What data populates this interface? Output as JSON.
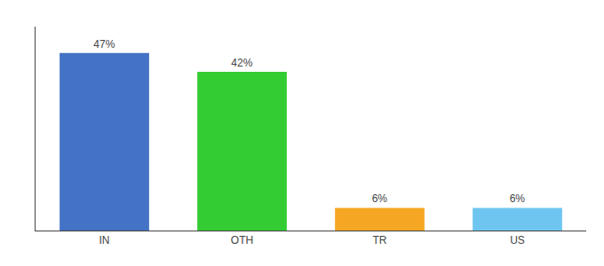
{
  "chart_data": {
    "type": "bar",
    "categories": [
      "IN",
      "OTH",
      "TR",
      "US"
    ],
    "values": [
      47,
      42,
      6,
      6
    ],
    "value_labels": [
      "47%",
      "42%",
      "6%",
      "6%"
    ],
    "colors": [
      "#4472c4",
      "#33cc33",
      "#f5a623",
      "#6ec6f0"
    ],
    "ylim": [
      0,
      54
    ],
    "grid": false,
    "data_labels": true,
    "tick_labels": "x"
  }
}
